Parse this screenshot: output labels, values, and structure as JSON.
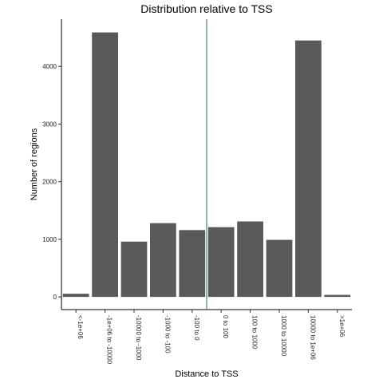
{
  "chart_data": {
    "type": "bar",
    "title": "Distribution relative to TSS",
    "xlabel": "Distance to TSS",
    "ylabel": "Number of regions",
    "categories": [
      "<-1e+06",
      "-1e+06 to -10000",
      "-10000 to -1000",
      "-1000 to -100",
      "-100 to 0",
      "0 to 100",
      "100 to 1000",
      "1000 to 10000",
      "10000 to 1e+06",
      ">1e+06"
    ],
    "values": [
      55,
      4590,
      960,
      1280,
      1160,
      1210,
      1310,
      990,
      4450,
      35
    ],
    "ylim": [
      -220,
      4820
    ],
    "yticks": [
      0,
      1000,
      2000,
      3000,
      4000
    ],
    "ytick_labels": [
      "0",
      "1000",
      "2000",
      "3000",
      "4000"
    ],
    "bar_color": "#595959",
    "vline": {
      "after_category_index": 4,
      "color": "#1a7a2e"
    },
    "grid": false,
    "legend": "none"
  }
}
